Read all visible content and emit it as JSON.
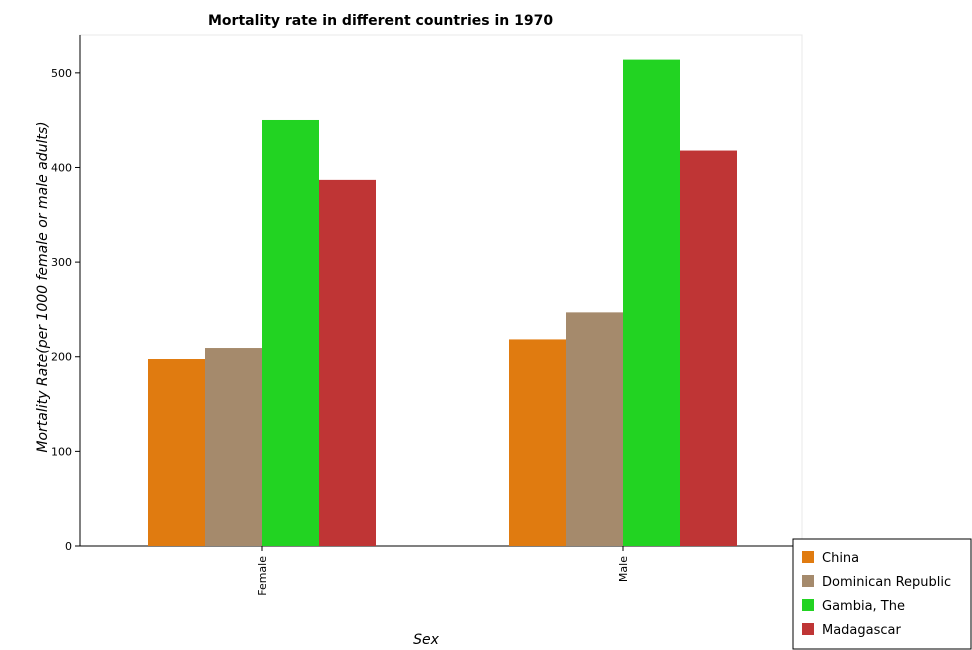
{
  "chart_data": {
    "type": "bar",
    "title": "Mortality rate in different countries in 1970",
    "xlabel": "Sex",
    "ylabel": "Mortality Rate(per 1000 female or male adults)",
    "categories": [
      "Female",
      "Male"
    ],
    "ylim": [
      0,
      540
    ],
    "yticks": [
      0,
      100,
      200,
      300,
      400,
      500
    ],
    "grid": false,
    "legend_position": "bottom-right",
    "series": [
      {
        "name": "China",
        "color": "#e07b10",
        "values": [
          197.6,
          218.3
        ]
      },
      {
        "name": "Dominican Republic",
        "color": "#a58a6c",
        "values": [
          209.2,
          246.9
        ]
      },
      {
        "name": "Gambia, The",
        "color": "#22d322",
        "values": [
          450.2,
          514.0
        ]
      },
      {
        "name": "Madagascar",
        "color": "#bf3535",
        "values": [
          386.9,
          417.9
        ]
      }
    ]
  }
}
